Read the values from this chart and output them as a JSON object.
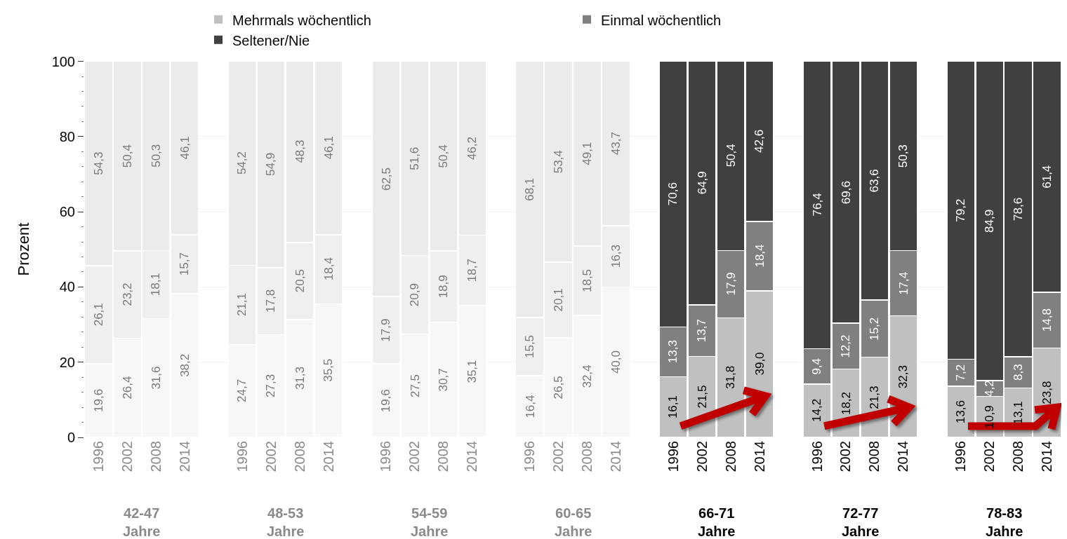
{
  "chart_data": {
    "type": "bar",
    "stacked": true,
    "ylabel": "Prozent",
    "ylim": [
      0,
      100.1
    ],
    "yticks": [
      0,
      {
        "value": 4,
        "label": null
      },
      {
        "value": 8,
        "label": null
      },
      {
        "value": 12,
        "label": null
      },
      {
        "value": 16,
        "label": null
      },
      20,
      {
        "value": 24,
        "label": null
      },
      {
        "value": 28,
        "label": null
      },
      {
        "value": 32,
        "label": null
      },
      {
        "value": 36,
        "label": null
      },
      40,
      {
        "value": 44,
        "label": null
      },
      {
        "value": 48,
        "label": null
      },
      {
        "value": 52,
        "label": null
      },
      {
        "value": 56,
        "label": null
      },
      60,
      {
        "value": 64,
        "label": null
      },
      {
        "value": 68,
        "label": null
      },
      {
        "value": 72,
        "label": null
      },
      {
        "value": 76,
        "label": null
      },
      80,
      {
        "value": 84,
        "label": null
      },
      {
        "value": 88,
        "label": null
      },
      {
        "value": 92,
        "label": null
      },
      {
        "value": 96,
        "label": null
      },
      100
    ],
    "grid": "y",
    "legend": "top",
    "categories": [
      "1996",
      "2002",
      "2008",
      "2014",
      null,
      "1996",
      "2002",
      "2008",
      "2014",
      null,
      "1996",
      "2002",
      "2008",
      "2014",
      null,
      "1996",
      "2002",
      "2008",
      "2014",
      null,
      "1996",
      "2002",
      "2008",
      "2014",
      null,
      "1996",
      "2002",
      "2008",
      "2014",
      null,
      "1996",
      "2002",
      "2008",
      "2014"
    ],
    "annotations": [
      "42-47 Jahre",
      "48-53 Jahre",
      "54-59 Jahre",
      "60-65 Jahre",
      "66-71 Jahre",
      "72-77 Jahre",
      "78-83 Jahre"
    ],
    "series": [
      {
        "name": "Mehrmals wöchentlich",
        "color": "#c0c0c0",
        "colors": [
          "#f7f7f7",
          "#f7f7f7",
          "#f7f7f7",
          "#f7f7f7",
          null,
          "#f7f7f7",
          "#f7f7f7",
          "#f7f7f7",
          "#f7f7f7",
          null,
          "#f7f7f7",
          "#f7f7f7",
          "#f7f7f7",
          "#f7f7f7",
          null,
          "#f7f7f7",
          "#f7f7f7",
          "#f7f7f7",
          "#f7f7f7",
          null,
          "#c0c0c0",
          "#c0c0c0",
          "#c0c0c0",
          "#c0c0c0",
          null,
          "#c0c0c0",
          "#c0c0c0",
          "#c0c0c0",
          "#c0c0c0",
          null,
          "#c0c0c0",
          "#c0c0c0",
          "#c0c0c0",
          "#c0c0c0"
        ],
        "values": [
          19.6,
          26.4,
          31.6,
          38.2,
          null,
          24.7,
          27.3,
          31.3,
          35.5,
          null,
          19.6,
          27.5,
          30.7,
          35.1,
          null,
          16.4,
          26.5,
          32.4,
          40.0,
          null,
          16.1,
          21.5,
          31.8,
          39.0,
          null,
          14.2,
          18.2,
          21.3,
          32.3,
          null,
          13.6,
          10.9,
          13.1,
          23.8
        ],
        "value_labels": [
          "19,6",
          "26,4",
          "31,6",
          "38,2",
          null,
          "24,7",
          "27,3",
          "31,3",
          "35,5",
          null,
          "19,6",
          "27,5",
          "30,7",
          "35,1",
          null,
          "16,4",
          "26,5",
          "32,4",
          "40,0",
          null,
          "16,1",
          "21,5",
          "31,8",
          "39,0",
          null,
          "14,2",
          "18,2",
          "21,3",
          "32,3",
          null,
          "13,6",
          "10,9",
          "13,1",
          "23,8"
        ]
      },
      {
        "name": "Einmal wöchentlich",
        "color": "#808080",
        "colors": [
          "#efefef",
          "#efefef",
          "#efefef",
          "#efefef",
          null,
          "#efefef",
          "#efefef",
          "#efefef",
          "#efefef",
          null,
          "#efefef",
          "#efefef",
          "#efefef",
          "#efefef",
          null,
          "#efefef",
          "#efefef",
          "#efefef",
          "#efefef",
          null,
          "#808080",
          "#808080",
          "#808080",
          "#808080",
          null,
          "#808080",
          "#808080",
          "#808080",
          "#808080",
          null,
          "#808080",
          "#808080",
          "#808080",
          "#808080"
        ],
        "values": [
          26.1,
          23.2,
          18.1,
          15.7,
          null,
          21.1,
          17.8,
          20.5,
          18.4,
          null,
          17.9,
          20.9,
          18.9,
          18.7,
          null,
          15.5,
          20.1,
          18.5,
          16.3,
          null,
          13.3,
          13.7,
          17.9,
          18.4,
          null,
          9.4,
          12.2,
          15.2,
          17.4,
          null,
          7.2,
          4.2,
          8.3,
          14.8
        ],
        "value_labels": [
          "26,1",
          "23,2",
          "18,1",
          "15,7",
          null,
          "21,1",
          "17,8",
          "20,5",
          "18,4",
          null,
          "17,9",
          "20,9",
          "18,9",
          "18,7",
          null,
          "15,5",
          "20,1",
          "18,5",
          "16,3",
          null,
          "13,3",
          "13,7",
          "17,9",
          "18,4",
          null,
          "9,4",
          "12,2",
          "15,2",
          "17,4",
          null,
          "7,2",
          "4,2",
          "8,3",
          "14,8"
        ]
      },
      {
        "name": "Seltener/Nie",
        "color": "#404040",
        "colors": [
          "#ebebeb",
          "#ebebeb",
          "#ebebeb",
          "#ebebeb",
          null,
          "#ebebeb",
          "#ebebeb",
          "#ebebeb",
          "#ebebeb",
          null,
          "#ebebeb",
          "#ebebeb",
          "#ebebeb",
          "#ebebeb",
          null,
          "#ebebeb",
          "#ebebeb",
          "#ebebeb",
          "#ebebeb",
          null,
          "#404040",
          "#404040",
          "#404040",
          "#404040",
          null,
          "#404040",
          "#404040",
          "#404040",
          "#404040",
          null,
          "#404040",
          "#404040",
          "#404040",
          "#404040"
        ],
        "values": [
          54.3,
          50.4,
          50.3,
          46.1,
          null,
          54.2,
          54.9,
          48.3,
          46.1,
          null,
          62.5,
          51.6,
          50.4,
          46.2,
          null,
          68.1,
          53.4,
          49.1,
          43.7,
          null,
          70.6,
          64.9,
          50.4,
          42.6,
          null,
          76.4,
          69.6,
          63.6,
          50.3,
          null,
          79.2,
          84.9,
          78.6,
          61.4
        ],
        "value_labels": [
          "54,3",
          "50,4",
          "50,3",
          "46,1",
          null,
          "54,2",
          "54,9",
          "48,3",
          "46,1",
          null,
          "62,5",
          "51,6",
          "50,4",
          "46,2",
          null,
          "68,1",
          "53,4",
          "49,1",
          "43,7",
          null,
          "70,6",
          "64,9",
          "50,4",
          "42,6",
          null,
          "76,4",
          "69,6",
          "63,6",
          "50,3",
          null,
          "79,2",
          "84,9",
          "78,6",
          "61,4"
        ]
      }
    ]
  }
}
